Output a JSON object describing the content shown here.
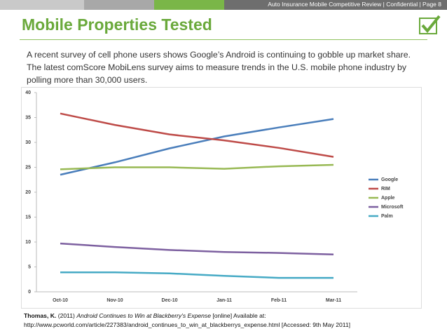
{
  "header": {
    "bar_text": "Auto Insurance Mobile Competitive Review | Confidential | Page 8",
    "title": "Mobile Properties Tested"
  },
  "intro": [
    "A recent survey of cell phone users shows Google’s Android is continuing to gobble up market share.",
    "The latest comScore MobiLens survey aims to measure trends in the U.S. mobile phone industry by",
    "polling more than 30,000 users."
  ],
  "chart_data": {
    "type": "line",
    "categories": [
      "Oct-10",
      "Nov-10",
      "Dec-10",
      "Jan-11",
      "Feb-11",
      "Mar-11"
    ],
    "series": [
      {
        "name": "Google",
        "color": "#4a7ebb",
        "values": [
          23.5,
          26,
          28.8,
          31.2,
          33,
          34.7
        ]
      },
      {
        "name": "RIM",
        "color": "#be4b48",
        "values": [
          35.8,
          33.5,
          31.6,
          30.4,
          28.9,
          27.1
        ]
      },
      {
        "name": "Apple",
        "color": "#98b954",
        "values": [
          24.6,
          25,
          25,
          24.7,
          25.2,
          25.5
        ]
      },
      {
        "name": "Microsoft",
        "color": "#7d60a0",
        "values": [
          9.7,
          9,
          8.4,
          8,
          7.8,
          7.5
        ]
      },
      {
        "name": "Palm",
        "color": "#46aac5",
        "values": [
          3.9,
          3.9,
          3.7,
          3.2,
          2.8,
          2.8
        ]
      }
    ],
    "ylim": [
      0,
      40
    ],
    "yticks": [
      0,
      5,
      10,
      15,
      20,
      25,
      30,
      35,
      40
    ],
    "grid": false,
    "legend": "right"
  },
  "citation": {
    "author": "Thomas, K.",
    "year": "(2011)",
    "title": "Android Continues to Win at Blackberry's Expense",
    "available": "[online] Available at:",
    "url": "http://www.pcworld.com/article/227383/android_continues_to_win_at_blackberrys_expense.html [Accessed: 9th May 2011]"
  }
}
